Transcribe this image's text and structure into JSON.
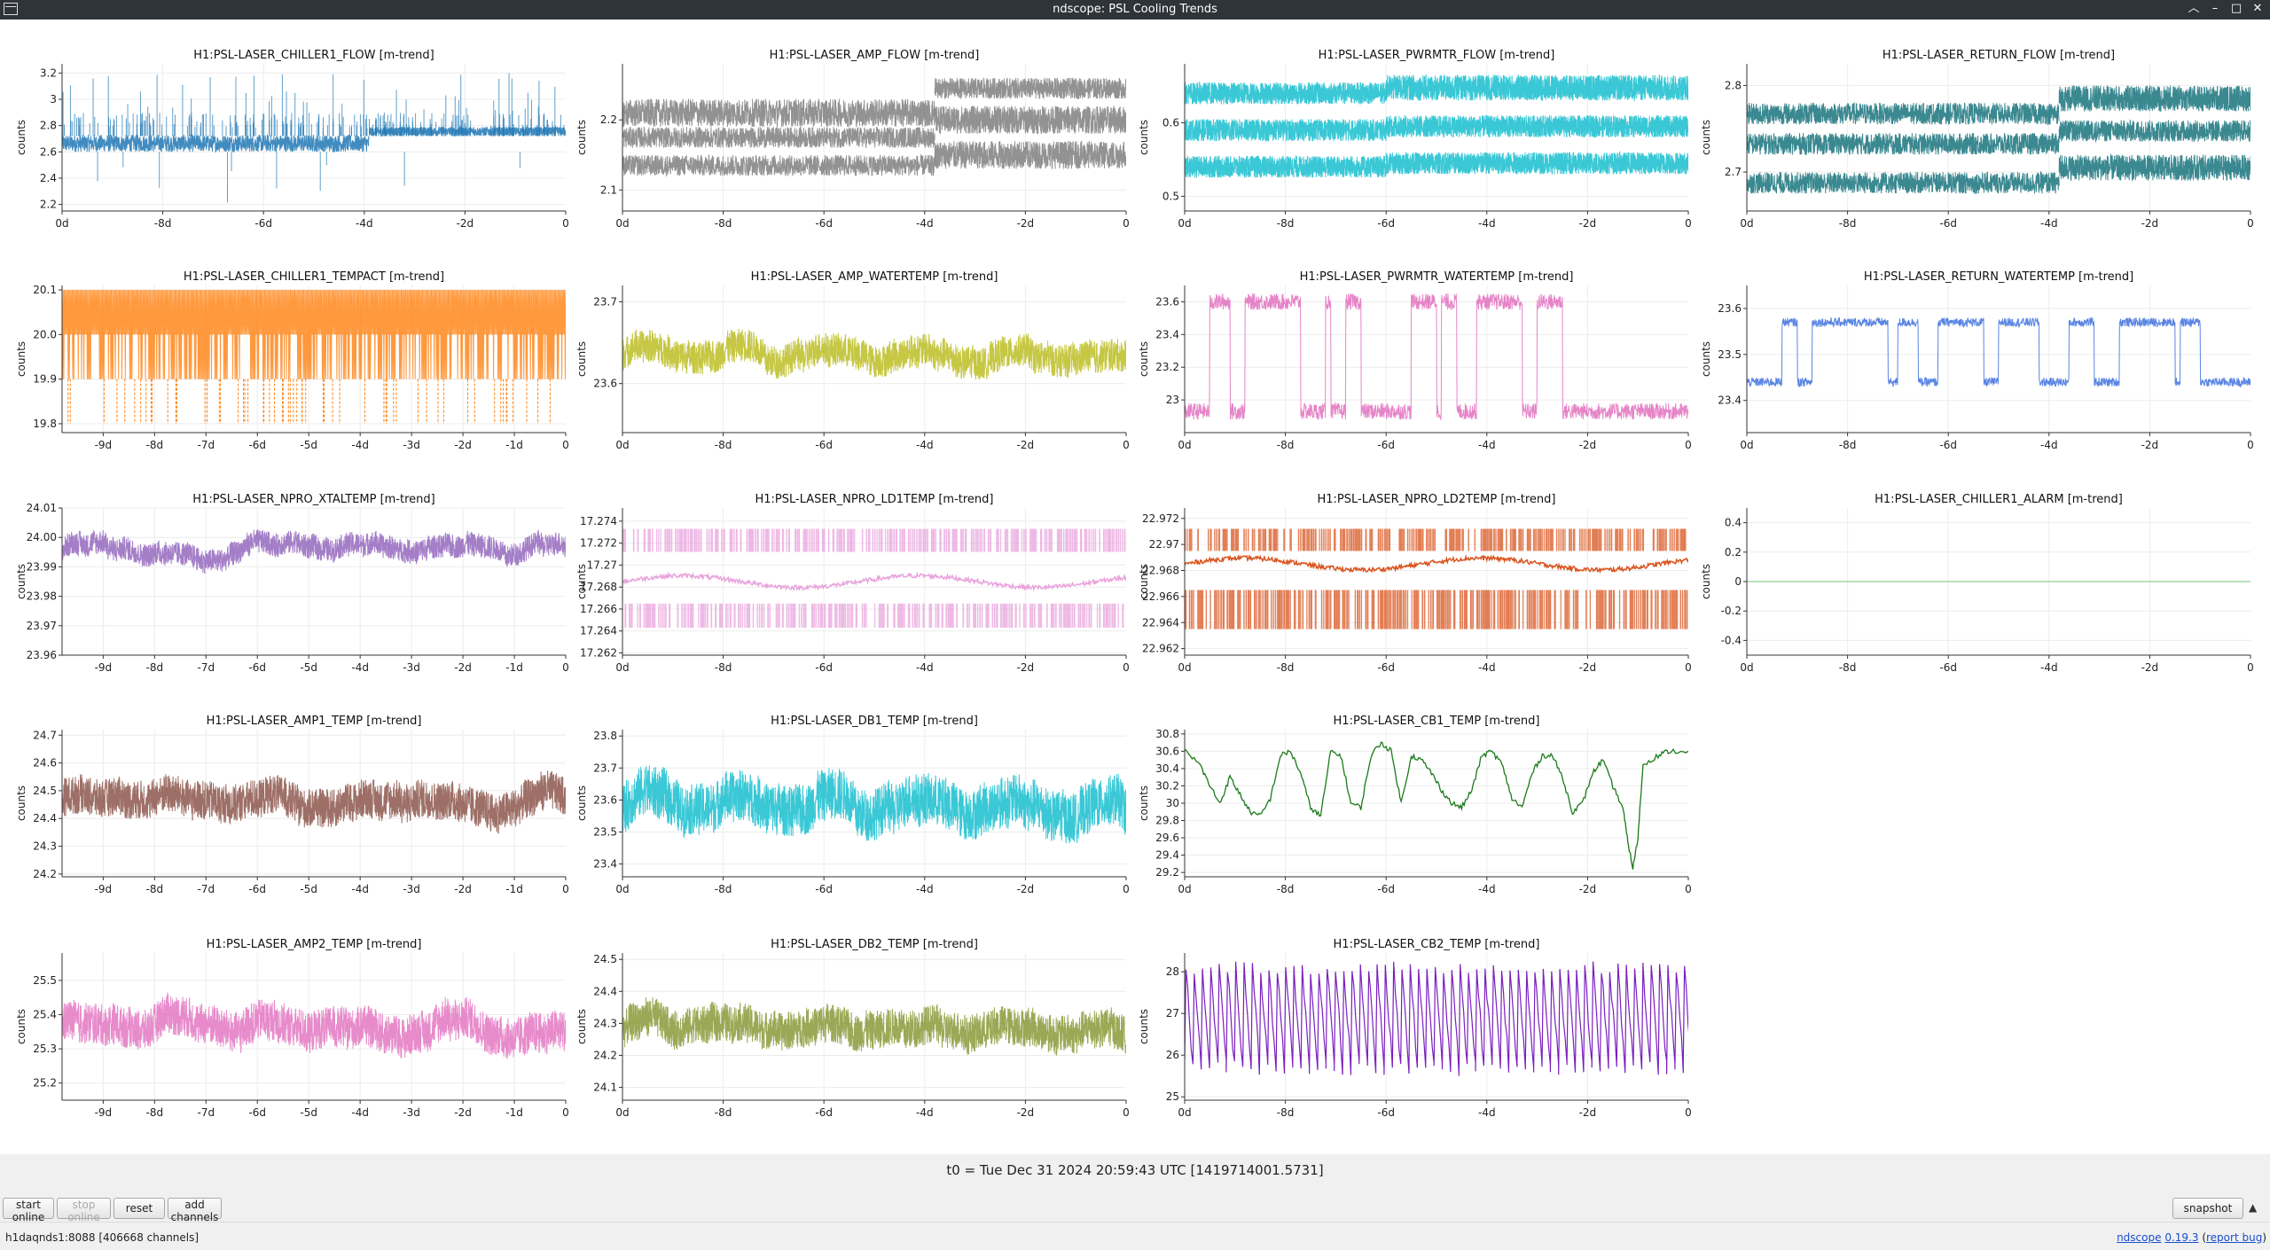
{
  "window": {
    "title": "ndscope: PSL Cooling Trends"
  },
  "ylabel": "counts",
  "t0_label": "t0 = Tue Dec 31 2024 20:59:43 UTC [1419714001.5731]",
  "buttons": {
    "start_online": "start online",
    "stop_online": "stop online",
    "reset": "reset",
    "add_channels": "add channels",
    "snapshot": "snapshot"
  },
  "status": {
    "text": "h1daqnds1:8088  [406668 channels]"
  },
  "version": {
    "app": "ndscope",
    "number": "0.19.3",
    "report_prefix": "(",
    "report": "report bug",
    "report_suffix": ")"
  },
  "chart_data": [
    {
      "type": "line",
      "title": "H1:PSL-LASER_CHILLER1_FLOW [m-trend]",
      "ylabel": "counts",
      "x": [
        -10,
        0
      ],
      "ylim": [
        2.15,
        3.27
      ],
      "yticks": [
        "2.2",
        "2.4",
        "2.6",
        "2.8",
        "3",
        "3.2"
      ],
      "xticks": [
        "0d",
        "-8d",
        "-6d",
        "-4d",
        "-2d",
        "0"
      ],
      "xtick_values": [
        -10,
        -8,
        -6,
        -4,
        -2,
        0
      ],
      "color": "#1f77b4",
      "style": "flow",
      "bands": [
        [
          2.6,
          2.73
        ]
      ],
      "shift_at": -3.9,
      "shift_bands": [
        [
          2.72,
          2.79
        ]
      ],
      "spikes": true
    },
    {
      "type": "line",
      "title": "H1:PSL-LASER_AMP_FLOW [m-trend]",
      "ylabel": "counts",
      "x": [
        -10,
        0
      ],
      "ylim": [
        2.07,
        2.28
      ],
      "yticks": [
        "2.1",
        "2.2"
      ],
      "xticks": [
        "0d",
        "-8d",
        "-6d",
        "-4d",
        "-2d",
        "0"
      ],
      "xtick_values": [
        -10,
        -8,
        -6,
        -4,
        -2,
        0
      ],
      "color": "#7f7f7f",
      "style": "bands",
      "bands": [
        [
          2.19,
          2.23
        ],
        [
          2.16,
          2.19
        ],
        [
          2.12,
          2.15
        ]
      ],
      "shift_at": -3.8,
      "shift_bands": [
        [
          2.23,
          2.26
        ],
        [
          2.18,
          2.22
        ],
        [
          2.13,
          2.17
        ]
      ]
    },
    {
      "type": "line",
      "title": "H1:PSL-LASER_PWRMTR_FLOW [m-trend]",
      "ylabel": "counts",
      "x": [
        -10,
        0
      ],
      "ylim": [
        0.48,
        0.68
      ],
      "yticks": [
        "0.5",
        "0.6"
      ],
      "xticks": [
        "0d",
        "-8d",
        "-6d",
        "-4d",
        "-2d",
        "0"
      ],
      "xtick_values": [
        -10,
        -8,
        -6,
        -4,
        -2,
        0
      ],
      "color": "#17becf",
      "style": "bands",
      "bands": [
        [
          0.625,
          0.655
        ],
        [
          0.575,
          0.605
        ],
        [
          0.525,
          0.555
        ]
      ],
      "shift_at": -6.0,
      "shift_bands": [
        [
          0.63,
          0.665
        ],
        [
          0.58,
          0.61
        ],
        [
          0.53,
          0.56
        ]
      ]
    },
    {
      "type": "line",
      "title": "H1:PSL-LASER_RETURN_FLOW [m-trend]",
      "ylabel": "counts",
      "x": [
        -10,
        0
      ],
      "ylim": [
        2.655,
        2.825
      ],
      "yticks": [
        "2.7",
        "2.8"
      ],
      "xticks": [
        "0d",
        "-8d",
        "-6d",
        "-4d",
        "-2d",
        "0"
      ],
      "xtick_values": [
        -10,
        -8,
        -6,
        -4,
        -2,
        0
      ],
      "color": "#17737c",
      "style": "bands",
      "bands": [
        [
          2.755,
          2.78
        ],
        [
          2.72,
          2.745
        ],
        [
          2.675,
          2.7
        ]
      ],
      "shift_at": -3.8,
      "shift_bands": [
        [
          2.77,
          2.8
        ],
        [
          2.735,
          2.76
        ],
        [
          2.69,
          2.72
        ]
      ]
    },
    {
      "type": "line",
      "title": "H1:PSL-LASER_CHILLER1_TEMPACT [m-trend]",
      "ylabel": "counts",
      "x": [
        -9.8,
        0
      ],
      "ylim": [
        19.78,
        20.11
      ],
      "yticks": [
        "19.8",
        "19.9",
        "20.0",
        "20.1"
      ],
      "xticks": [
        "-9d",
        "-8d",
        "-7d",
        "-6d",
        "-5d",
        "-4d",
        "-3d",
        "-2d",
        "-1d",
        "0"
      ],
      "xtick_values": [
        -9,
        -8,
        -7,
        -6,
        -5,
        -4,
        -3,
        -2,
        -1,
        0
      ],
      "color": "#ff7f0e",
      "style": "digital",
      "levels": [
        19.9,
        20.0,
        20.1
      ],
      "dips": 19.8
    },
    {
      "type": "line",
      "title": "H1:PSL-LASER_AMP_WATERTEMP [m-trend]",
      "ylabel": "counts",
      "x": [
        -10,
        0
      ],
      "ylim": [
        23.54,
        23.72
      ],
      "yticks": [
        "23.6",
        "23.7"
      ],
      "xticks": [
        "0d",
        "-8d",
        "-6d",
        "-4d",
        "-2d",
        "0"
      ],
      "xtick_values": [
        -10,
        -8,
        -6,
        -4,
        -2,
        0
      ],
      "color": "#bcbd22",
      "style": "noise",
      "base": 23.635,
      "amp": 0.02,
      "wander": 0.012
    },
    {
      "type": "line",
      "title": "H1:PSL-LASER_PWRMTR_WATERTEMP [m-trend]",
      "ylabel": "counts",
      "x": [
        -10,
        0
      ],
      "ylim": [
        22.8,
        23.7
      ],
      "yticks": [
        "23",
        "23.2",
        "23.4",
        "23.6"
      ],
      "xticks": [
        "0d",
        "-8d",
        "-6d",
        "-4d",
        "-2d",
        "0"
      ],
      "xtick_values": [
        -10,
        -8,
        -6,
        -4,
        -2,
        0
      ],
      "color": "#e377c2",
      "style": "square",
      "low": 22.93,
      "high": 23.6,
      "segments": [
        [
          -9.5,
          -9.1
        ],
        [
          -8.8,
          -7.7
        ],
        [
          -7.2,
          -7.1
        ],
        [
          -6.8,
          -6.5
        ],
        [
          -5.5,
          -5.0
        ],
        [
          -4.9,
          -4.6
        ],
        [
          -4.2,
          -3.3
        ],
        [
          -3.0,
          -2.5
        ]
      ]
    },
    {
      "type": "line",
      "title": "H1:PSL-LASER_RETURN_WATERTEMP [m-trend]",
      "ylabel": "counts",
      "x": [
        -10,
        0
      ],
      "ylim": [
        23.33,
        23.65
      ],
      "yticks": [
        "23.4",
        "23.5",
        "23.6"
      ],
      "xticks": [
        "0d",
        "-8d",
        "-6d",
        "-4d",
        "-2d",
        "0"
      ],
      "xtick_values": [
        -10,
        -8,
        -6,
        -4,
        -2,
        0
      ],
      "color": "#4878e0",
      "style": "square",
      "low": 23.44,
      "high": 23.57,
      "segments": [
        [
          -9.3,
          -9.0
        ],
        [
          -8.7,
          -7.2
        ],
        [
          -7.0,
          -6.6
        ],
        [
          -6.2,
          -5.3
        ],
        [
          -5.0,
          -4.2
        ],
        [
          -3.6,
          -3.1
        ],
        [
          -2.6,
          -1.5
        ],
        [
          -1.4,
          -1.0
        ]
      ]
    },
    {
      "type": "line",
      "title": "H1:PSL-LASER_NPRO_XTALTEMP [m-trend]",
      "ylabel": "counts",
      "x": [
        -9.8,
        0
      ],
      "ylim": [
        23.96,
        24.01
      ],
      "yticks": [
        "23.96",
        "23.97",
        "23.98",
        "23.99",
        "24.00",
        "24.01"
      ],
      "xticks": [
        "-9d",
        "-8d",
        "-7d",
        "-6d",
        "-5d",
        "-4d",
        "-3d",
        "-2d",
        "-1d",
        "0"
      ],
      "xtick_values": [
        -9,
        -8,
        -7,
        -6,
        -5,
        -4,
        -3,
        -2,
        -1,
        0
      ],
      "color": "#9467bd",
      "style": "noise",
      "base": 23.996,
      "amp": 0.004,
      "wander": 0.003
    },
    {
      "type": "line",
      "title": "H1:PSL-LASER_NPRO_LD1TEMP [m-trend]",
      "ylabel": "counts",
      "x": [
        -10,
        0
      ],
      "ylim": [
        17.2618,
        17.2752
      ],
      "yticks": [
        "17.262",
        "17.264",
        "17.266",
        "17.268",
        "17.27",
        "17.272",
        "17.274"
      ],
      "xticks": [
        "0d",
        "-8d",
        "-6d",
        "-4d",
        "-2d",
        "0"
      ],
      "xtick_values": [
        -10,
        -8,
        -6,
        -4,
        -2,
        0
      ],
      "color": "#e8a2dc",
      "style": "ld",
      "bands": [
        [
          17.2712,
          17.2733
        ],
        [
          17.2643,
          17.2665
        ]
      ],
      "trend": 17.2685
    },
    {
      "type": "line",
      "title": "H1:PSL-LASER_NPRO_LD2TEMP [m-trend]",
      "ylabel": "counts",
      "x": [
        -10,
        0
      ],
      "ylim": [
        22.9615,
        22.9728
      ],
      "yticks": [
        "22.962",
        "22.964",
        "22.966",
        "22.968",
        "22.97",
        "22.972"
      ],
      "xticks": [
        "0d",
        "-8d",
        "-6d",
        "-4d",
        "-2d",
        "0"
      ],
      "xtick_values": [
        -10,
        -8,
        -6,
        -4,
        -2,
        0
      ],
      "color": "#d9541e",
      "style": "ld",
      "bands": [
        [
          22.9695,
          22.9712
        ],
        [
          22.9635,
          22.9665
        ]
      ],
      "trend": 22.9685
    },
    {
      "type": "line",
      "title": "H1:PSL-LASER_CHILLER1_ALARM [m-trend]",
      "ylabel": "counts",
      "x": [
        -10,
        0
      ],
      "ylim": [
        -0.5,
        0.5
      ],
      "yticks": [
        "-0.4",
        "-0.2",
        "0",
        "0.2",
        "0.4"
      ],
      "xticks": [
        "0d",
        "-8d",
        "-6d",
        "-4d",
        "-2d",
        "0"
      ],
      "xtick_values": [
        -10,
        -8,
        -6,
        -4,
        -2,
        0
      ],
      "color": "#8fd18f",
      "style": "flat",
      "value": 0
    },
    {
      "type": "line",
      "title": "H1:PSL-LASER_AMP1_TEMP [m-trend]",
      "ylabel": "counts",
      "x": [
        -9.8,
        0
      ],
      "ylim": [
        24.19,
        24.72
      ],
      "yticks": [
        "24.2",
        "24.3",
        "24.4",
        "24.5",
        "24.6",
        "24.7"
      ],
      "xticks": [
        "-9d",
        "-8d",
        "-7d",
        "-6d",
        "-5d",
        "-4d",
        "-3d",
        "-2d",
        "-1d",
        "0"
      ],
      "xtick_values": [
        -9,
        -8,
        -7,
        -6,
        -5,
        -4,
        -3,
        -2,
        -1,
        0
      ],
      "color": "#8c564b",
      "style": "noise",
      "base": 24.47,
      "amp": 0.07,
      "wander": 0.03
    },
    {
      "type": "line",
      "title": "H1:PSL-LASER_DB1_TEMP [m-trend]",
      "ylabel": "counts",
      "x": [
        -10,
        0
      ],
      "ylim": [
        23.36,
        23.82
      ],
      "yticks": [
        "23.4",
        "23.5",
        "23.6",
        "23.7",
        "23.8"
      ],
      "xticks": [
        "0d",
        "-8d",
        "-6d",
        "-4d",
        "-2d",
        "0"
      ],
      "xtick_values": [
        -10,
        -8,
        -6,
        -4,
        -2,
        0
      ],
      "color": "#17becf",
      "style": "noise",
      "base": 23.58,
      "amp": 0.08,
      "wander": 0.04
    },
    {
      "type": "line",
      "title": "H1:PSL-LASER_CB1_TEMP [m-trend]",
      "ylabel": "counts",
      "x": [
        -10,
        0
      ],
      "ylim": [
        29.15,
        30.85
      ],
      "yticks": [
        "29.2",
        "29.4",
        "29.6",
        "29.8",
        "30",
        "30.2",
        "30.4",
        "30.6",
        "30.8"
      ],
      "xticks": [
        "0d",
        "-8d",
        "-6d",
        "-4d",
        "-2d",
        "0"
      ],
      "xtick_values": [
        -10,
        -8,
        -6,
        -4,
        -2,
        0
      ],
      "color": "#1a7a1a",
      "style": "curve",
      "points": [
        [
          -10,
          30.6
        ],
        [
          -9.7,
          30.45
        ],
        [
          -9.5,
          30.2
        ],
        [
          -9.3,
          30.0
        ],
        [
          -9.1,
          30.3
        ],
        [
          -8.9,
          30.1
        ],
        [
          -8.7,
          29.9
        ],
        [
          -8.5,
          29.85
        ],
        [
          -8.3,
          30.05
        ],
        [
          -8.1,
          30.55
        ],
        [
          -7.9,
          30.6
        ],
        [
          -7.7,
          30.35
        ],
        [
          -7.5,
          29.95
        ],
        [
          -7.3,
          29.85
        ],
        [
          -7.1,
          30.6
        ],
        [
          -6.9,
          30.55
        ],
        [
          -6.7,
          30.0
        ],
        [
          -6.5,
          29.95
        ],
        [
          -6.3,
          30.55
        ],
        [
          -6.1,
          30.7
        ],
        [
          -5.9,
          30.6
        ],
        [
          -5.7,
          30.0
        ],
        [
          -5.5,
          30.55
        ],
        [
          -5.3,
          30.5
        ],
        [
          -5.1,
          30.35
        ],
        [
          -4.9,
          30.15
        ],
        [
          -4.7,
          30.0
        ],
        [
          -4.5,
          29.95
        ],
        [
          -4.3,
          30.15
        ],
        [
          -4.1,
          30.55
        ],
        [
          -3.9,
          30.6
        ],
        [
          -3.7,
          30.45
        ],
        [
          -3.5,
          30.05
        ],
        [
          -3.3,
          29.95
        ],
        [
          -3.1,
          30.35
        ],
        [
          -2.9,
          30.55
        ],
        [
          -2.7,
          30.55
        ],
        [
          -2.5,
          30.3
        ],
        [
          -2.3,
          29.9
        ],
        [
          -2.1,
          30.0
        ],
        [
          -1.9,
          30.35
        ],
        [
          -1.7,
          30.5
        ],
        [
          -1.5,
          30.2
        ],
        [
          -1.3,
          29.95
        ],
        [
          -1.2,
          29.55
        ],
        [
          -1.1,
          29.25
        ],
        [
          -1.0,
          29.6
        ],
        [
          -0.9,
          30.45
        ],
        [
          -0.6,
          30.55
        ],
        [
          -0.4,
          30.6
        ],
        [
          0,
          30.6
        ]
      ]
    },
    {
      "type": "line",
      "title": "H1:PSL-LASER_AMP2_TEMP [m-trend]",
      "ylabel": "counts",
      "x": [
        -9.8,
        0
      ],
      "ylim": [
        25.15,
        25.58
      ],
      "yticks": [
        "25.2",
        "25.3",
        "25.4",
        "25.5"
      ],
      "xticks": [
        "-9d",
        "-8d",
        "-7d",
        "-6d",
        "-5d",
        "-4d",
        "-3d",
        "-2d",
        "-1d",
        "0"
      ],
      "xtick_values": [
        -9,
        -8,
        -7,
        -6,
        -5,
        -4,
        -3,
        -2,
        -1,
        0
      ],
      "color": "#e377c2",
      "style": "noise",
      "base": 25.37,
      "amp": 0.06,
      "wander": 0.03
    },
    {
      "type": "line",
      "title": "H1:PSL-LASER_DB2_TEMP [m-trend]",
      "ylabel": "counts",
      "x": [
        -10,
        0
      ],
      "ylim": [
        24.06,
        24.52
      ],
      "yticks": [
        "24.1",
        "24.2",
        "24.3",
        "24.4",
        "24.5"
      ],
      "xticks": [
        "0d",
        "-8d",
        "-6d",
        "-4d",
        "-2d",
        "0"
      ],
      "xtick_values": [
        -10,
        -8,
        -6,
        -4,
        -2,
        0
      ],
      "color": "#8a9a3a",
      "style": "noise",
      "base": 24.28,
      "amp": 0.06,
      "wander": 0.03
    },
    {
      "type": "line",
      "title": "H1:PSL-LASER_CB2_TEMP [m-trend]",
      "ylabel": "counts",
      "x": [
        -10,
        0
      ],
      "ylim": [
        24.92,
        28.45
      ],
      "yticks": [
        "25",
        "26",
        "27",
        "28"
      ],
      "xticks": [
        "0d",
        "-8d",
        "-6d",
        "-4d",
        "-2d",
        "0"
      ],
      "xtick_values": [
        -10,
        -8,
        -6,
        -4,
        -2,
        0
      ],
      "color": "#7a1fbf",
      "style": "sawtooth",
      "low": 25.7,
      "high": 28.1,
      "period": 0.165
    }
  ]
}
